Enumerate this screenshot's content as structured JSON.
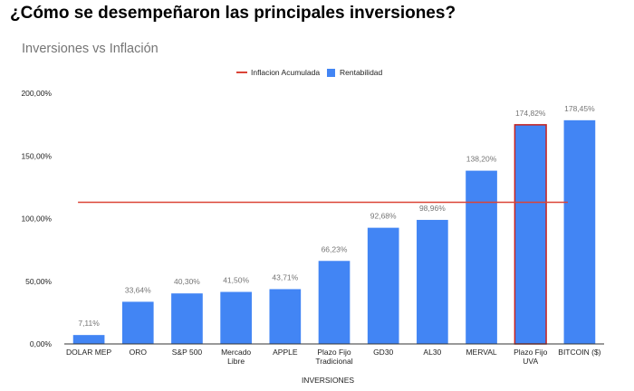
{
  "page": {
    "heading": "¿Cómo se desempeñaron las principales inversiones?"
  },
  "chart_data": {
    "type": "bar",
    "title": "Inversiones vs Inflación",
    "xlabel": "INVERSIONES",
    "ylabel": "",
    "ylim": [
      0,
      200
    ],
    "yticks": [
      0,
      50,
      100,
      150,
      200
    ],
    "ytick_labels": [
      "0,00%",
      "50,00%",
      "100,00%",
      "150,00%",
      "200,00%"
    ],
    "categories": [
      [
        "DOLAR MEP"
      ],
      [
        "ORO"
      ],
      [
        "S&P 500"
      ],
      [
        "Mercado",
        "Libre"
      ],
      [
        "APPLE"
      ],
      [
        "Plazo Fijo",
        "Tradicional"
      ],
      [
        "GD30"
      ],
      [
        "AL30"
      ],
      [
        "MERVAL"
      ],
      [
        "Plazo Fijo",
        "UVA"
      ],
      [
        "BITCOIN ($)"
      ]
    ],
    "series": [
      {
        "name": "Rentabilidad",
        "type": "bar",
        "color": "#4285f4",
        "values": [
          7.11,
          33.64,
          40.3,
          41.5,
          43.71,
          66.23,
          92.68,
          98.96,
          138.2,
          174.82,
          178.45
        ],
        "labels": [
          "7,11%",
          "33,64%",
          "40,30%",
          "41,50%",
          "43,71%",
          "66,23%",
          "92,68%",
          "98,96%",
          "138,20%",
          "174,82%",
          "178,45%"
        ]
      },
      {
        "name": "Inflacion Acumulada",
        "type": "line",
        "color": "#db4437",
        "value": 113
      }
    ],
    "highlighted_category_index": 9,
    "highlight_color": "#c5221f",
    "grid": false,
    "legend_position": "top-center"
  }
}
